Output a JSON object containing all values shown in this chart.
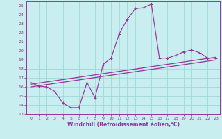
{
  "xlabel": "Windchill (Refroidissement éolien,°C)",
  "xlim": [
    -0.5,
    23.5
  ],
  "ylim": [
    13,
    25.5
  ],
  "yticks": [
    13,
    14,
    15,
    16,
    17,
    18,
    19,
    20,
    21,
    22,
    23,
    24,
    25
  ],
  "xticks": [
    0,
    1,
    2,
    3,
    4,
    5,
    6,
    7,
    8,
    9,
    10,
    11,
    12,
    13,
    14,
    15,
    16,
    17,
    18,
    19,
    20,
    21,
    22,
    23
  ],
  "background_color": "#c8eef0",
  "grid_color": "#a0d8d8",
  "line_color": "#993399",
  "line1_x": [
    0,
    1,
    2,
    3,
    4,
    5,
    6,
    7,
    8,
    9,
    10,
    11,
    12,
    13,
    14,
    15,
    16,
    17,
    18,
    19,
    20,
    21,
    22,
    23
  ],
  "line1_y": [
    16.5,
    16.1,
    16.0,
    15.5,
    14.2,
    13.7,
    13.7,
    16.5,
    14.8,
    18.5,
    19.2,
    21.9,
    23.5,
    24.7,
    24.8,
    25.2,
    19.2,
    19.2,
    19.5,
    19.9,
    20.1,
    19.8,
    19.2,
    19.2
  ],
  "line2_x": [
    0,
    23
  ],
  "line2_y": [
    16.3,
    19.3
  ],
  "line3_x": [
    0,
    23
  ],
  "line3_y": [
    16.0,
    19.0
  ]
}
